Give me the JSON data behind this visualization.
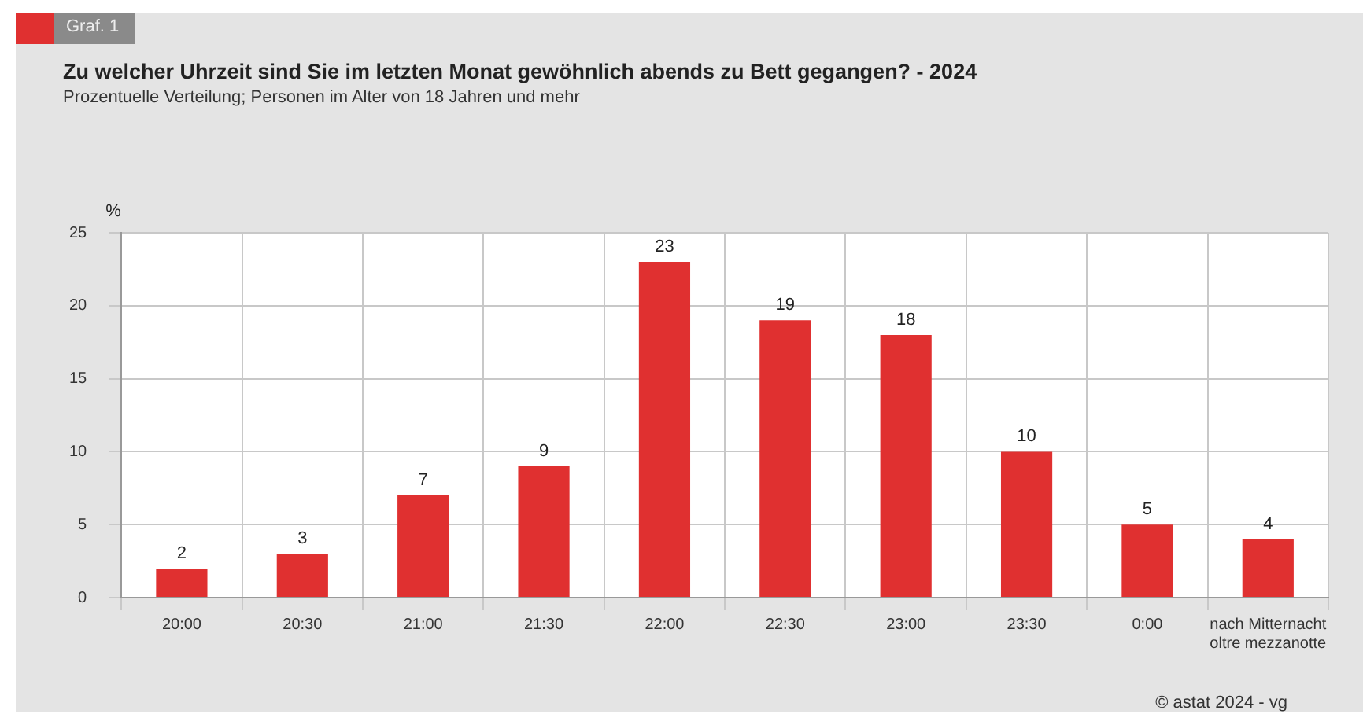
{
  "chart_data": {
    "type": "bar",
    "title": "Zu welcher Uhrzeit sind Sie im letzten Monat gewöhnlich abends zu Bett gegangen? - 2024",
    "subtitle": "Prozentuelle Verteilung; Personen im Alter von 18 Jahren und mehr",
    "ylabel": "%",
    "categories": [
      "20:00",
      "20:30",
      "21:00",
      "21:30",
      "22:00",
      "22:30",
      "23:00",
      "23:30",
      "0:00",
      "nach Mitternacht\noltre mezzanotte"
    ],
    "values": [
      2,
      3,
      7,
      9,
      23,
      19,
      18,
      10,
      5,
      4
    ],
    "color": "#e03030",
    "ylim": [
      0,
      25
    ],
    "yticks": [
      0,
      5,
      10,
      15,
      20,
      25
    ],
    "grid": true,
    "data_labels": true,
    "legend": false,
    "annotations": [
      "Graf. 1",
      "© astat 2024 - vg"
    ]
  }
}
